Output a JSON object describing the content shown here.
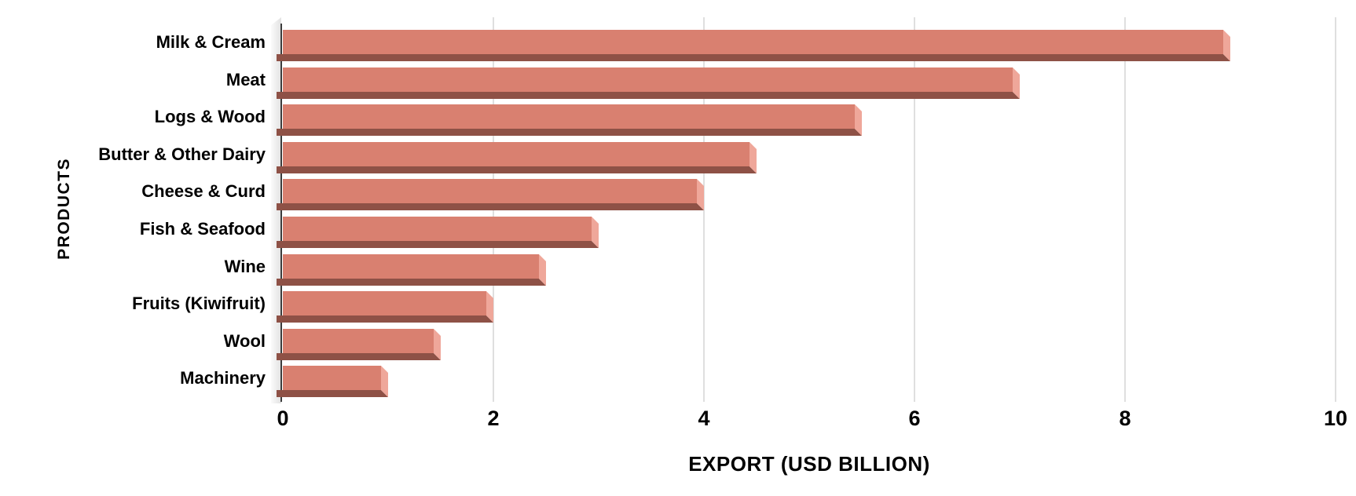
{
  "chart_data": {
    "type": "bar",
    "orientation": "horizontal",
    "title": "",
    "xlabel": "EXPORT (USD BILLION)",
    "ylabel": "PRODUCTS",
    "categories": [
      "Milk & Cream",
      "Meat",
      "Logs & Wood",
      "Butter & Other Dairy",
      "Cheese & Curd",
      "Fish & Seafood",
      "Wine",
      "Fruits (Kiwifruit)",
      "Wool",
      "Machinery"
    ],
    "values": [
      9.0,
      7.0,
      5.5,
      4.5,
      4.0,
      3.0,
      2.5,
      2.0,
      1.5,
      1.0
    ],
    "xlim": [
      0,
      10
    ],
    "x_ticks": [
      0,
      2,
      4,
      6,
      8,
      10
    ],
    "grid": true,
    "legend": "none",
    "colors": {
      "bar_face": "#d98070",
      "bar_bottom_shadow": "#8e5146",
      "bar_right_bevel": "#efa79a",
      "gridline": "#dfdfdf",
      "axis_line": "#3c3c3c",
      "text": "#000000",
      "background": "#ffffff"
    }
  }
}
